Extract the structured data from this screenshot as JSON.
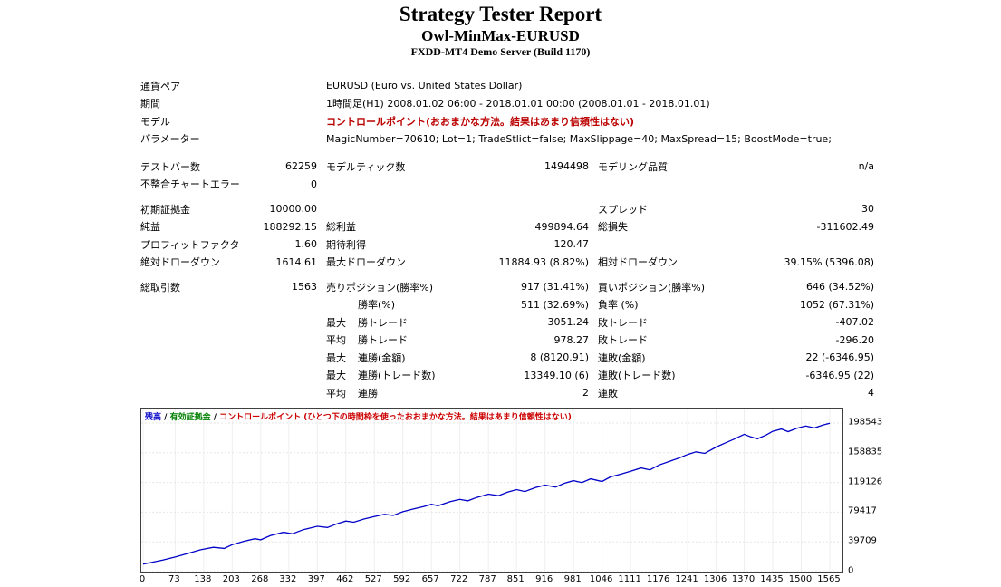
{
  "header": {
    "title": "Strategy Tester Report",
    "subtitle": "Owl-MinMax-EURUSD",
    "server": "FXDD-MT4 Demo Server (Build 1170)"
  },
  "info_rows": [
    {
      "label": "通貨ペア",
      "value": "EURUSD (Euro vs. United States Dollar)",
      "red": false
    },
    {
      "label": "期間",
      "value": "1時間足(H1) 2008.01.02 06:00 - 2018.01.01 00:00 (2008.01.01 - 2018.01.01)",
      "red": false
    },
    {
      "label": "モデル",
      "value": "コントロールポイント(おおまかな方法。結果はあまり信頼性はない)",
      "red": true
    },
    {
      "label": "パラメーター",
      "value": "MagicNumber=70610; Lot=1; TradeStlict=false; MaxSlippage=40; MaxSpread=15; BoostMode=true;",
      "red": false
    }
  ],
  "stats_rows": [
    {
      "c1": {
        "l": "テストバー数",
        "v": "62259"
      },
      "c2": {
        "l": "モデルティック数",
        "v": "1494498"
      },
      "c3": {
        "l": "モデリング品質",
        "v": "n/a"
      }
    },
    {
      "c1": {
        "l": "不整合チャートエラー",
        "v": "0"
      }
    },
    {
      "gap": true,
      "c1": {
        "l": "初期証拠金",
        "v": "10000.00"
      },
      "c3": {
        "l": "スプレッド",
        "v": "30"
      }
    },
    {
      "c1": {
        "l": "純益",
        "v": "188292.15"
      },
      "c2": {
        "l": "総利益",
        "v": "499894.64"
      },
      "c3": {
        "l": "総損失",
        "v": "-311602.49"
      }
    },
    {
      "c1": {
        "l": "プロフィットファクタ",
        "v": "1.60"
      },
      "c2": {
        "l": "期待利得",
        "v": "120.47"
      }
    },
    {
      "c1": {
        "l": "絶対ドローダウン",
        "v": "1614.61"
      },
      "c2": {
        "l": "最大ドローダウン",
        "v": "11884.93 (8.82%)"
      },
      "c3": {
        "l": "相対ドローダウン",
        "v": "39.15% (5396.08)"
      }
    },
    {
      "gap": true,
      "c1": {
        "l": "総取引数",
        "v": "1563"
      },
      "c2": {
        "l": "売りポジション(勝率%)",
        "v": "917 (31.41%)"
      },
      "c3": {
        "l": "買いポジション(勝率%)",
        "v": "646 (34.52%)"
      }
    },
    {
      "c2": {
        "p": "",
        "l": "勝率(%)",
        "v": "511 (32.69%)"
      },
      "c3": {
        "l": "負率 (%)",
        "v": "1052 (67.31%)"
      }
    },
    {
      "c2": {
        "p": "最大",
        "l": "勝トレード",
        "v": "3051.24"
      },
      "c3": {
        "l": "敗トレード",
        "v": "-407.02"
      }
    },
    {
      "c2": {
        "p": "平均",
        "l": "勝トレード",
        "v": "978.27"
      },
      "c3": {
        "l": "敗トレード",
        "v": "-296.20"
      }
    },
    {
      "c2": {
        "p": "最大",
        "l": "連勝(金額)",
        "v": "8 (8120.91)"
      },
      "c3": {
        "l": "連敗(金額)",
        "v": "22 (-6346.95)"
      }
    },
    {
      "c2": {
        "p": "最大",
        "l": "連勝(トレード数)",
        "v": "13349.10 (6)"
      },
      "c3": {
        "l": "連敗(トレード数)",
        "v": "-6346.95 (22)"
      }
    },
    {
      "c2": {
        "p": "平均",
        "l": "連勝",
        "v": "2"
      },
      "c3": {
        "l": "連敗",
        "v": "4"
      }
    }
  ],
  "chart": {
    "caption": [
      {
        "text": "残高",
        "color": "#0000c8"
      },
      {
        "text": " / ",
        "color": "#000000"
      },
      {
        "text": "有効証拠金",
        "color": "#008000"
      },
      {
        "text": " / ",
        "color": "#000000"
      },
      {
        "text": "コントロールポイント (ひとつ下の時間枠を使ったおおまかな方法。結果はあまり信頼性はない)",
        "color": "#cc0000"
      }
    ],
    "chart_data": {
      "type": "line",
      "title": "",
      "xlabel": "",
      "ylabel": "",
      "xlim": [
        0,
        1565
      ],
      "ylim": [
        0,
        217900
      ],
      "x_ticks": [
        0,
        73,
        138,
        203,
        268,
        332,
        397,
        462,
        527,
        592,
        657,
        722,
        787,
        851,
        916,
        981,
        1046,
        1111,
        1176,
        1241,
        1306,
        1370,
        1435,
        1500,
        1565
      ],
      "y_ticks": [
        0,
        39709,
        79417,
        119126,
        158835,
        198543
      ],
      "grid": true,
      "legend_position": "top-left",
      "series": [
        {
          "name": "残高",
          "color": "#0000c8",
          "points": [
            [
              0,
              10000
            ],
            [
              20,
              12500
            ],
            [
              45,
              15500
            ],
            [
              73,
              19500
            ],
            [
              100,
              24000
            ],
            [
              130,
              29000
            ],
            [
              160,
              32500
            ],
            [
              185,
              31000
            ],
            [
              203,
              36000
            ],
            [
              230,
              40500
            ],
            [
              255,
              44000
            ],
            [
              268,
              42500
            ],
            [
              290,
              48000
            ],
            [
              320,
              52500
            ],
            [
              340,
              50500
            ],
            [
              365,
              56000
            ],
            [
              397,
              60500
            ],
            [
              420,
              59000
            ],
            [
              445,
              64500
            ],
            [
              462,
              67500
            ],
            [
              480,
              66000
            ],
            [
              505,
              70500
            ],
            [
              527,
              73500
            ],
            [
              550,
              76500
            ],
            [
              570,
              75000
            ],
            [
              592,
              80000
            ],
            [
              615,
              83500
            ],
            [
              640,
              87000
            ],
            [
              657,
              90000
            ],
            [
              672,
              88000
            ],
            [
              700,
              93500
            ],
            [
              722,
              96500
            ],
            [
              740,
              94500
            ],
            [
              760,
              99000
            ],
            [
              787,
              103500
            ],
            [
              810,
              101500
            ],
            [
              830,
              106000
            ],
            [
              851,
              109500
            ],
            [
              870,
              107000
            ],
            [
              895,
              112500
            ],
            [
              916,
              115500
            ],
            [
              940,
              113000
            ],
            [
              960,
              118000
            ],
            [
              981,
              121500
            ],
            [
              1000,
              119000
            ],
            [
              1020,
              124000
            ],
            [
              1046,
              120500
            ],
            [
              1065,
              126500
            ],
            [
              1090,
              130500
            ],
            [
              1111,
              134000
            ],
            [
              1135,
              138500
            ],
            [
              1155,
              136000
            ],
            [
              1176,
              142500
            ],
            [
              1200,
              147500
            ],
            [
              1220,
              151500
            ],
            [
              1241,
              156500
            ],
            [
              1260,
              160000
            ],
            [
              1280,
              158000
            ],
            [
              1306,
              166500
            ],
            [
              1325,
              171500
            ],
            [
              1345,
              176500
            ],
            [
              1370,
              183500
            ],
            [
              1385,
              180000
            ],
            [
              1400,
              177500
            ],
            [
              1420,
              182500
            ],
            [
              1435,
              187500
            ],
            [
              1455,
              190500
            ],
            [
              1470,
              187000
            ],
            [
              1490,
              191500
            ],
            [
              1510,
              194500
            ],
            [
              1530,
              192000
            ],
            [
              1550,
              196000
            ],
            [
              1565,
              198292
            ]
          ]
        }
      ]
    }
  }
}
